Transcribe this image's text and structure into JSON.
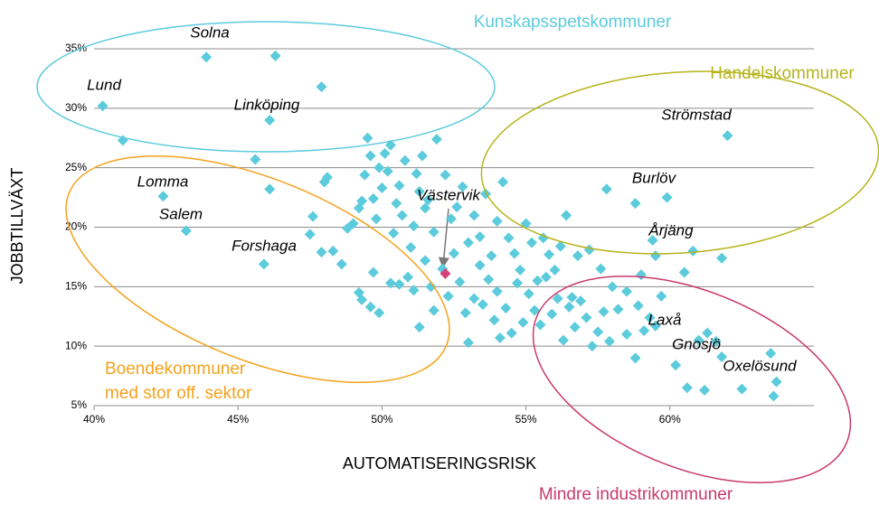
{
  "chart_data": {
    "type": "scatter",
    "x_label": "AUTOMATISERINGSRISK",
    "y_label": "JOBBTILLVÄXT",
    "color": "#5ccbdc",
    "x": [
      40.3,
      41,
      43.9,
      46.3,
      47.9,
      46.1,
      45.6,
      46.1,
      42.4,
      43.2,
      45.9,
      47.6,
      47.5,
      47.9,
      48.0,
      48.1,
      48.3,
      48.6,
      48.8,
      49.0,
      49.2,
      49.3,
      49.4,
      49.5,
      49.6,
      49.7,
      49.8,
      49.9,
      50.0,
      50.1,
      50.2,
      50.3,
      50.4,
      50.5,
      50.6,
      50.7,
      50.8,
      51.0,
      51.1,
      51.2,
      51.3,
      51.4,
      51.5,
      51.6,
      51.8,
      51.9,
      52.2,
      52.4,
      52.6,
      52.8,
      53.0,
      53.2,
      53.4,
      53.6,
      53.8,
      54.0,
      54.2,
      54.4,
      54.6,
      54.8,
      55.0,
      55.2,
      55.4,
      55.6,
      55.8,
      56.0,
      56.2,
      56.4,
      56.6,
      56.8,
      57.2,
      57.6,
      57.8,
      58.0,
      58.5,
      58.8,
      59.0,
      59.4,
      59.5,
      59.9,
      60.5,
      60.8,
      61.8,
      62.0,
      49.2,
      49.3,
      49.6,
      49.7,
      49.9,
      50.3,
      50.6,
      50.9,
      51.1,
      51.3,
      51.5,
      51.7,
      51.8,
      52.1,
      52.3,
      52.5,
      52.7,
      52.9,
      53.0,
      53.2,
      53.4,
      53.5,
      53.7,
      53.9,
      54.0,
      54.1,
      54.3,
      54.5,
      54.7,
      54.9,
      55.1,
      55.3,
      55.5,
      55.7,
      55.9,
      56.1,
      56.3,
      56.5,
      56.7,
      56.9,
      57.1,
      57.3,
      57.5,
      57.7,
      57.9,
      58.2,
      58.5,
      58.8,
      58.9,
      59.1,
      59.3,
      59.5,
      59.7,
      60.2,
      60.6,
      61.0,
      61.2,
      61.3,
      61.6,
      61.8,
      62.5,
      63.5,
      63.6,
      63.7
    ],
    "values": [
      30.2,
      27.3,
      34.3,
      34.4,
      31.8,
      29.0,
      25.7,
      23.2,
      22.6,
      19.7,
      16.9,
      20.9,
      19.4,
      17.9,
      23.8,
      24.2,
      18.0,
      16.9,
      19.9,
      20.3,
      21.6,
      22.2,
      24.4,
      27.5,
      26.0,
      22.4,
      20.7,
      25.0,
      23.3,
      26.2,
      24.7,
      26.9,
      19.5,
      22.0,
      23.5,
      21.0,
      25.6,
      18.3,
      20.1,
      24.5,
      23.0,
      26.0,
      21.6,
      22.3,
      19.6,
      27.4,
      24.4,
      20.7,
      21.7,
      23.4,
      18.7,
      21.0,
      19.2,
      22.8,
      17.6,
      20.5,
      23.8,
      19.1,
      17.8,
      16.4,
      20.3,
      18.7,
      15.5,
      19.1,
      17.7,
      16.4,
      18.4,
      21.0,
      14.1,
      17.6,
      18.1,
      16.5,
      23.2,
      15.0,
      14.6,
      22.0,
      16.0,
      18.9,
      17.6,
      22.5,
      16.2,
      18.0,
      17.4,
      27.7,
      14.5,
      13.9,
      13.3,
      16.2,
      12.8,
      15.3,
      15.2,
      15.8,
      14.7,
      11.6,
      17.2,
      15.0,
      13.0,
      16.5,
      14.2,
      17.8,
      15.4,
      12.8,
      10.3,
      14.0,
      16.8,
      13.5,
      15.6,
      12.2,
      14.6,
      10.7,
      13.2,
      11.1,
      15.3,
      12.0,
      14.4,
      13.0,
      11.8,
      15.8,
      12.7,
      14.0,
      10.5,
      13.3,
      11.6,
      13.8,
      12.4,
      10.0,
      11.2,
      12.9,
      10.4,
      13.1,
      11.0,
      9.0,
      13.4,
      11.3,
      12.4,
      11.7,
      14.2,
      8.4,
      6.5,
      10.5,
      6.3,
      11.1,
      10.4,
      9.1,
      6.4,
      9.4,
      5.8,
      7.0
    ],
    "highlight": {
      "x": 52.2,
      "y": 16.1,
      "color": "#d2437b"
    },
    "xlim": [
      40,
      65
    ],
    "ylim": [
      5,
      35
    ],
    "xticks": [
      {
        "value": 40,
        "label": "40%"
      },
      {
        "value": 45,
        "label": "45%"
      },
      {
        "value": 50,
        "label": "50%"
      },
      {
        "value": 55,
        "label": "55%"
      },
      {
        "value": 60,
        "label": "60%"
      }
    ],
    "yticks": [
      {
        "value": 5,
        "label": "5%"
      },
      {
        "value": 10,
        "label": "10%"
      },
      {
        "value": 15,
        "label": "15%"
      },
      {
        "value": 20,
        "label": "20%"
      },
      {
        "value": 25,
        "label": "25%"
      },
      {
        "value": 30,
        "label": "30%"
      },
      {
        "value": 35,
        "label": "35%"
      }
    ],
    "grid": true,
    "annotations": [
      "Solna",
      "Lund",
      "Linköping",
      "Strömstad",
      "Burlöv",
      "Lomma",
      "Salem",
      "Forshaga",
      "Västervik",
      "Årjäng",
      "Laxå",
      "Gnosjö",
      "Oxelösund"
    ],
    "regions": [
      {
        "label": [
          "Kunskapsspetskommuner"
        ],
        "color": "#5ccbdc"
      },
      {
        "label": [
          "Handelskommuner"
        ],
        "color": "#b6b41c"
      },
      {
        "label": [
          "Boendekommuner",
          "med stor off. sektor"
        ],
        "color": "#f4a21c"
      },
      {
        "label": [
          "Mindre industrikommuner"
        ],
        "color": "#c93a6c"
      }
    ]
  }
}
